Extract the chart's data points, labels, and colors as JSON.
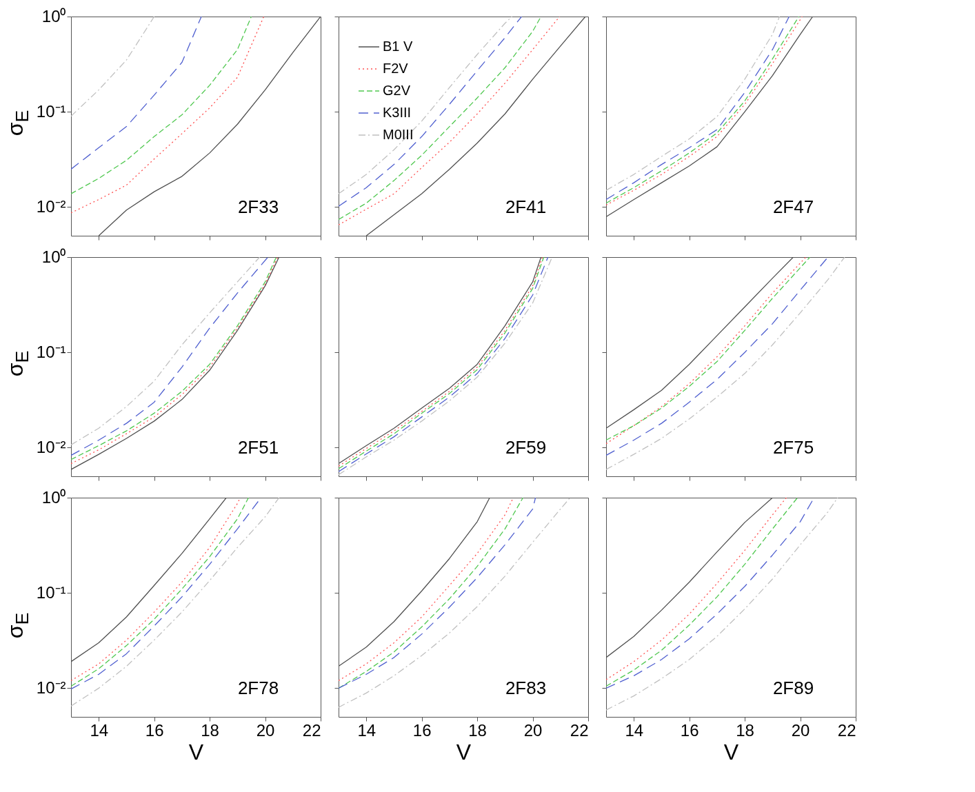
{
  "chart_data": [
    {
      "type": "line",
      "ylabel": "σ$_{E}$",
      "tick_labels": "y",
      "log": "y",
      "xlim": [
        13,
        22
      ],
      "ylim": [
        0.005,
        1
      ],
      "xticks": [
        {
          "value": 14,
          "label": null
        },
        {
          "value": 16,
          "label": null
        },
        {
          "value": 18,
          "label": null
        },
        {
          "value": 20,
          "label": null
        },
        {
          "value": 22,
          "label": null
        }
      ],
      "yticks": [
        {
          "value": 1,
          "label": "10⁰"
        },
        {
          "value": 0.1,
          "label": "10⁻¹"
        },
        {
          "value": 0.01,
          "label": "10⁻²"
        }
      ],
      "annotations": [
        "2F33"
      ],
      "series": [
        {
          "color": "#505050",
          "line_style": "solid",
          "x": [
            14,
            15,
            16,
            17,
            18,
            19,
            20,
            21,
            22
          ],
          "values": [
            0.005,
            0.0093,
            0.0145,
            0.021,
            0.037,
            0.074,
            0.17,
            0.42,
            1
          ]
        },
        {
          "color": "#ff5050",
          "line_style": "dotted",
          "x": [
            13,
            14,
            15,
            16,
            17,
            18,
            19,
            19.95
          ],
          "values": [
            0.0087,
            0.012,
            0.017,
            0.032,
            0.059,
            0.11,
            0.23,
            1
          ]
        },
        {
          "color": "#50c850",
          "line_style": "dashed",
          "x": [
            13,
            14,
            15,
            16,
            17,
            18,
            19,
            19.5
          ],
          "values": [
            0.0138,
            0.02,
            0.031,
            0.055,
            0.093,
            0.19,
            0.45,
            1
          ]
        },
        {
          "color": "#5060d0",
          "line_style": "dashed",
          "x": [
            13,
            14,
            15,
            16,
            17,
            17.7
          ],
          "values": [
            0.025,
            0.042,
            0.07,
            0.15,
            0.33,
            1
          ]
        },
        {
          "color": "#c0c0c0",
          "line_style": "dashed",
          "x": [
            13,
            14,
            15,
            16
          ],
          "values": [
            0.09,
            0.17,
            0.35,
            1
          ]
        }
      ]
    },
    {
      "type": "line",
      "tick_labels": false,
      "log": "y",
      "legend": "top left",
      "xlim": [
        13,
        22
      ],
      "ylim": [
        0.005,
        1
      ],
      "xticks": [
        {
          "value": 14,
          "label": null
        },
        {
          "value": 16,
          "label": null
        },
        {
          "value": 18,
          "label": null
        },
        {
          "value": 20,
          "label": null
        },
        {
          "value": 22,
          "label": null
        }
      ],
      "yticks": [
        {
          "value": 1,
          "label": null
        },
        {
          "value": 0.1,
          "label": null
        },
        {
          "value": 0.01,
          "label": null
        }
      ],
      "annotations": [
        "2F41"
      ],
      "series": [
        {
          "name": "B1 V",
          "color": "#505050",
          "line_style": "solid",
          "x": [
            14,
            15,
            16,
            17,
            18,
            19,
            20,
            21,
            21.9
          ],
          "values": [
            0.005,
            0.0083,
            0.0138,
            0.025,
            0.047,
            0.095,
            0.22,
            0.49,
            1
          ]
        },
        {
          "name": "F2V",
          "color": "#ff5050",
          "line_style": "dotted",
          "x": [
            13,
            14,
            15,
            16,
            17,
            18,
            19,
            20,
            20.97
          ],
          "values": [
            0.0065,
            0.0095,
            0.0138,
            0.026,
            0.048,
            0.095,
            0.2,
            0.45,
            1
          ]
        },
        {
          "name": "G2V",
          "color": "#50c850",
          "line_style": "dashed",
          "x": [
            13,
            14,
            15,
            16,
            17,
            18,
            19,
            20,
            20.3
          ],
          "values": [
            0.0074,
            0.011,
            0.019,
            0.035,
            0.07,
            0.14,
            0.29,
            0.7,
            1
          ]
        },
        {
          "name": "K3III",
          "color": "#5060d0",
          "line_style": "dashed",
          "x": [
            13,
            14,
            15,
            16,
            17,
            18,
            19,
            19.6
          ],
          "values": [
            0.0102,
            0.016,
            0.028,
            0.055,
            0.12,
            0.27,
            0.6,
            1
          ]
        },
        {
          "name": "M0III",
          "color": "#c0c0c0",
          "line_style": "dashed",
          "x": [
            13,
            14,
            15,
            16,
            17,
            18,
            19,
            19.25
          ],
          "values": [
            0.0138,
            0.022,
            0.04,
            0.08,
            0.18,
            0.4,
            0.85,
            1
          ]
        }
      ]
    },
    {
      "type": "line",
      "tick_labels": false,
      "log": "y",
      "xlim": [
        13,
        22
      ],
      "ylim": [
        0.005,
        1
      ],
      "xticks": [
        {
          "value": 14,
          "label": null
        },
        {
          "value": 16,
          "label": null
        },
        {
          "value": 18,
          "label": null
        },
        {
          "value": 20,
          "label": null
        },
        {
          "value": 22,
          "label": null
        }
      ],
      "yticks": [
        {
          "value": 1,
          "label": null
        },
        {
          "value": 0.1,
          "label": null
        },
        {
          "value": 0.01,
          "label": null
        }
      ],
      "annotations": [
        "2F47"
      ],
      "series": [
        {
          "color": "#505050",
          "line_style": "solid",
          "x": [
            13,
            14,
            15,
            16,
            17,
            18,
            19,
            20,
            20.45
          ],
          "values": [
            0.0079,
            0.012,
            0.018,
            0.027,
            0.043,
            0.1,
            0.24,
            0.65,
            1
          ]
        },
        {
          "color": "#ff5050",
          "line_style": "dotted",
          "x": [
            13,
            14,
            15,
            16,
            17,
            18,
            19,
            20.07
          ],
          "values": [
            0.0105,
            0.015,
            0.022,
            0.034,
            0.055,
            0.12,
            0.32,
            1
          ]
        },
        {
          "color": "#50c850",
          "line_style": "dashed",
          "x": [
            13,
            14,
            15,
            16,
            17,
            18,
            19,
            19.95
          ],
          "values": [
            0.011,
            0.016,
            0.024,
            0.037,
            0.06,
            0.13,
            0.36,
            1
          ]
        },
        {
          "color": "#5060d0",
          "line_style": "dashed",
          "x": [
            13,
            14,
            15,
            16,
            17,
            18,
            19,
            19.6
          ],
          "values": [
            0.012,
            0.018,
            0.028,
            0.042,
            0.065,
            0.16,
            0.45,
            1
          ]
        },
        {
          "color": "#c0c0c0",
          "line_style": "dashed",
          "x": [
            13,
            14,
            15,
            16,
            17,
            18,
            19,
            19.25
          ],
          "values": [
            0.015,
            0.022,
            0.034,
            0.052,
            0.089,
            0.22,
            0.65,
            1
          ]
        }
      ]
    },
    {
      "type": "line",
      "ylabel": "σ$_{E}$",
      "tick_labels": "y",
      "log": "y",
      "xlim": [
        13,
        22
      ],
      "ylim": [
        0.005,
        1
      ],
      "xticks": [
        {
          "value": 14,
          "label": null
        },
        {
          "value": 16,
          "label": null
        },
        {
          "value": 18,
          "label": null
        },
        {
          "value": 20,
          "label": null
        },
        {
          "value": 22,
          "label": null
        }
      ],
      "yticks": [
        {
          "value": 1,
          "label": "10⁰"
        },
        {
          "value": 0.1,
          "label": "10⁻¹"
        },
        {
          "value": 0.01,
          "label": "10⁻²"
        }
      ],
      "annotations": [
        "2F51"
      ],
      "series": [
        {
          "color": "#505050",
          "line_style": "solid",
          "x": [
            13,
            14,
            15,
            16,
            17,
            18,
            19,
            20,
            20.5
          ],
          "values": [
            0.0059,
            0.0085,
            0.0125,
            0.019,
            0.032,
            0.065,
            0.17,
            0.5,
            1
          ]
        },
        {
          "color": "#ff5050",
          "line_style": "dotted",
          "x": [
            13,
            14,
            15,
            16,
            17,
            18,
            19,
            20,
            20.45
          ],
          "values": [
            0.0068,
            0.0095,
            0.014,
            0.021,
            0.036,
            0.07,
            0.18,
            0.52,
            1
          ]
        },
        {
          "color": "#50c850",
          "line_style": "dashed",
          "x": [
            13,
            14,
            15,
            16,
            17,
            18,
            19,
            20,
            20.4
          ],
          "values": [
            0.0075,
            0.0105,
            0.015,
            0.023,
            0.039,
            0.075,
            0.19,
            0.55,
            1
          ]
        },
        {
          "color": "#5060d0",
          "line_style": "dashed",
          "x": [
            13,
            14,
            15,
            16,
            17,
            18,
            19,
            20.1
          ],
          "values": [
            0.0083,
            0.012,
            0.018,
            0.03,
            0.07,
            0.18,
            0.42,
            1
          ]
        },
        {
          "color": "#c0c0c0",
          "line_style": "dashed",
          "x": [
            13,
            14,
            15,
            16,
            17,
            18,
            19,
            19.8
          ],
          "values": [
            0.0107,
            0.016,
            0.027,
            0.05,
            0.12,
            0.26,
            0.55,
            1
          ]
        }
      ]
    },
    {
      "type": "line",
      "tick_labels": false,
      "log": "y",
      "xlim": [
        13,
        22
      ],
      "ylim": [
        0.005,
        1
      ],
      "xticks": [
        {
          "value": 14,
          "label": null
        },
        {
          "value": 16,
          "label": null
        },
        {
          "value": 18,
          "label": null
        },
        {
          "value": 20,
          "label": null
        },
        {
          "value": 22,
          "label": null
        }
      ],
      "yticks": [
        {
          "value": 1,
          "label": null
        },
        {
          "value": 0.1,
          "label": null
        },
        {
          "value": 0.01,
          "label": null
        }
      ],
      "annotations": [
        "2F59"
      ],
      "series": [
        {
          "color": "#505050",
          "line_style": "solid",
          "x": [
            13,
            14,
            15,
            16,
            17,
            18,
            19,
            20,
            20.3
          ],
          "values": [
            0.0068,
            0.0105,
            0.016,
            0.026,
            0.042,
            0.075,
            0.19,
            0.55,
            1
          ]
        },
        {
          "color": "#ff5050",
          "line_style": "dotted",
          "x": [
            13,
            14,
            15,
            16,
            17,
            18,
            19,
            20,
            20.35
          ],
          "values": [
            0.0064,
            0.0098,
            0.015,
            0.024,
            0.039,
            0.07,
            0.17,
            0.5,
            1
          ]
        },
        {
          "color": "#50c850",
          "line_style": "dashed",
          "x": [
            13,
            14,
            15,
            16,
            17,
            18,
            19,
            20,
            20.4
          ],
          "values": [
            0.006,
            0.0092,
            0.014,
            0.023,
            0.037,
            0.066,
            0.16,
            0.47,
            1
          ]
        },
        {
          "color": "#5060d0",
          "line_style": "dashed",
          "x": [
            13,
            14,
            15,
            16,
            17,
            18,
            19,
            20,
            20.55
          ],
          "values": [
            0.0056,
            0.0086,
            0.013,
            0.021,
            0.034,
            0.06,
            0.14,
            0.4,
            1
          ]
        },
        {
          "color": "#c0c0c0",
          "line_style": "dashed",
          "x": [
            13,
            14,
            15,
            16,
            17,
            18,
            19,
            20,
            20.7
          ],
          "values": [
            0.0052,
            0.008,
            0.012,
            0.019,
            0.031,
            0.055,
            0.125,
            0.33,
            1
          ]
        }
      ]
    },
    {
      "type": "line",
      "tick_labels": false,
      "log": "y",
      "xlim": [
        13,
        22
      ],
      "ylim": [
        0.005,
        1
      ],
      "xticks": [
        {
          "value": 14,
          "label": null
        },
        {
          "value": 16,
          "label": null
        },
        {
          "value": 18,
          "label": null
        },
        {
          "value": 20,
          "label": null
        },
        {
          "value": 22,
          "label": null
        }
      ],
      "yticks": [
        {
          "value": 1,
          "label": null
        },
        {
          "value": 0.1,
          "label": null
        },
        {
          "value": 0.01,
          "label": null
        }
      ],
      "annotations": [
        "2F75"
      ],
      "series": [
        {
          "color": "#505050",
          "line_style": "solid",
          "x": [
            13,
            14,
            15,
            16,
            17,
            18,
            19,
            19.75
          ],
          "values": [
            0.016,
            0.025,
            0.04,
            0.075,
            0.15,
            0.3,
            0.6,
            1
          ]
        },
        {
          "color": "#ff5050",
          "line_style": "dotted",
          "x": [
            13,
            14,
            15,
            16,
            17,
            18,
            19,
            20.2
          ],
          "values": [
            0.011,
            0.017,
            0.027,
            0.047,
            0.09,
            0.19,
            0.42,
            1
          ]
        },
        {
          "color": "#50c850",
          "line_style": "dashed",
          "x": [
            13,
            14,
            15,
            16,
            17,
            18,
            19,
            20.35
          ],
          "values": [
            0.012,
            0.017,
            0.026,
            0.044,
            0.08,
            0.17,
            0.37,
            1
          ]
        },
        {
          "color": "#5060d0",
          "line_style": "dashed",
          "x": [
            13,
            14,
            15,
            16,
            17,
            18,
            19,
            20,
            21
          ],
          "values": [
            0.0083,
            0.012,
            0.018,
            0.03,
            0.052,
            0.1,
            0.2,
            0.45,
            1
          ]
        },
        {
          "color": "#c0c0c0",
          "line_style": "dashed",
          "x": [
            13,
            14,
            15,
            16,
            17,
            18,
            19,
            20,
            21,
            21.6
          ],
          "values": [
            0.0059,
            0.0085,
            0.0125,
            0.02,
            0.034,
            0.06,
            0.12,
            0.26,
            0.58,
            1
          ]
        }
      ]
    },
    {
      "type": "line",
      "xlabel": "V",
      "ylabel": "σ$_{E}$",
      "log": "y",
      "xlim": [
        13,
        22
      ],
      "ylim": [
        0.005,
        1
      ],
      "xticks": [
        14,
        16,
        18,
        20,
        22
      ],
      "yticks": [
        {
          "value": 1,
          "label": "10⁰"
        },
        {
          "value": 0.1,
          "label": "10⁻¹"
        },
        {
          "value": 0.01,
          "label": "10⁻²"
        }
      ],
      "annotations": [
        "2F78"
      ],
      "series": [
        {
          "color": "#505050",
          "line_style": "solid",
          "x": [
            13,
            14,
            15,
            16,
            17,
            18,
            18.6
          ],
          "values": [
            0.019,
            0.03,
            0.056,
            0.12,
            0.26,
            0.6,
            1
          ]
        },
        {
          "color": "#ff5050",
          "line_style": "dotted",
          "x": [
            13,
            14,
            15,
            16,
            17,
            18,
            19,
            19.1
          ],
          "values": [
            0.012,
            0.018,
            0.032,
            0.063,
            0.13,
            0.3,
            0.87,
            1
          ]
        },
        {
          "color": "#50c850",
          "line_style": "dashed",
          "x": [
            13,
            14,
            15,
            16,
            17,
            18,
            19,
            19.4
          ],
          "values": [
            0.0105,
            0.016,
            0.028,
            0.053,
            0.11,
            0.24,
            0.6,
            1
          ]
        },
        {
          "color": "#5060d0",
          "line_style": "dashed",
          "x": [
            13,
            14,
            15,
            16,
            17,
            18,
            19,
            19.85
          ],
          "values": [
            0.0098,
            0.014,
            0.023,
            0.045,
            0.091,
            0.2,
            0.47,
            1
          ]
        },
        {
          "color": "#c0c0c0",
          "line_style": "dashed",
          "x": [
            13,
            14,
            15,
            16,
            17,
            18,
            19,
            20,
            20.5
          ],
          "values": [
            0.0065,
            0.01,
            0.017,
            0.032,
            0.063,
            0.135,
            0.3,
            0.63,
            1
          ]
        }
      ]
    },
    {
      "type": "line",
      "xlabel": "V",
      "tick_labels": "x",
      "log": "y",
      "xlim": [
        13,
        22
      ],
      "ylim": [
        0.005,
        1
      ],
      "xticks": [
        14,
        16,
        18,
        20,
        22
      ],
      "yticks": [
        {
          "value": 1,
          "label": null
        },
        {
          "value": 0.1,
          "label": null
        },
        {
          "value": 0.01,
          "label": null
        }
      ],
      "annotations": [
        "2F83"
      ],
      "series": [
        {
          "color": "#505050",
          "line_style": "solid",
          "x": [
            13,
            14,
            15,
            16,
            17,
            18,
            18.45
          ],
          "values": [
            0.017,
            0.027,
            0.05,
            0.105,
            0.23,
            0.56,
            1
          ]
        },
        {
          "color": "#ff5050",
          "line_style": "dotted",
          "x": [
            13,
            14,
            15,
            16,
            17,
            18,
            19,
            19.3
          ],
          "values": [
            0.012,
            0.018,
            0.03,
            0.056,
            0.12,
            0.26,
            0.66,
            1
          ]
        },
        {
          "color": "#50c850",
          "line_style": "dashed",
          "x": [
            13,
            14,
            15,
            16,
            17,
            18,
            19,
            19.65
          ],
          "values": [
            0.01,
            0.015,
            0.024,
            0.044,
            0.087,
            0.19,
            0.47,
            1
          ]
        },
        {
          "color": "#5060d0",
          "line_style": "dashed",
          "x": [
            13,
            14,
            15,
            16,
            17,
            18,
            19,
            20,
            20.1
          ],
          "values": [
            0.01,
            0.014,
            0.021,
            0.037,
            0.071,
            0.145,
            0.32,
            0.76,
            1
          ]
        },
        {
          "color": "#c0c0c0",
          "line_style": "dashed",
          "x": [
            13,
            14,
            15,
            16,
            17,
            18,
            19,
            20,
            21,
            21.35
          ],
          "values": [
            0.0063,
            0.0089,
            0.0135,
            0.022,
            0.038,
            0.072,
            0.15,
            0.34,
            0.76,
            1
          ]
        }
      ]
    },
    {
      "type": "line",
      "xlabel": "V",
      "tick_labels": "x",
      "log": "y",
      "xlim": [
        13,
        22
      ],
      "ylim": [
        0.005,
        1
      ],
      "xticks": [
        14,
        16,
        18,
        20,
        22
      ],
      "yticks": [
        {
          "value": 1,
          "label": null
        },
        {
          "value": 0.1,
          "label": null
        },
        {
          "value": 0.01,
          "label": null
        }
      ],
      "annotations": [
        "2F89"
      ],
      "series": [
        {
          "color": "#505050",
          "line_style": "solid",
          "x": [
            13,
            14,
            15,
            16,
            17,
            18,
            19
          ],
          "values": [
            0.021,
            0.035,
            0.066,
            0.13,
            0.27,
            0.55,
            1
          ]
        },
        {
          "color": "#ff5050",
          "line_style": "dotted",
          "x": [
            13,
            14,
            15,
            16,
            17,
            18,
            19,
            19.5
          ],
          "values": [
            0.0123,
            0.019,
            0.032,
            0.06,
            0.126,
            0.28,
            0.66,
            1
          ]
        },
        {
          "color": "#50c850",
          "line_style": "dashed",
          "x": [
            13,
            14,
            15,
            16,
            17,
            18,
            19,
            19.9
          ],
          "values": [
            0.0105,
            0.0155,
            0.025,
            0.046,
            0.091,
            0.2,
            0.47,
            1
          ]
        },
        {
          "color": "#5060d0",
          "line_style": "dashed",
          "x": [
            13,
            14,
            15,
            16,
            17,
            18,
            19,
            20,
            20.5
          ],
          "values": [
            0.01,
            0.0135,
            0.02,
            0.033,
            0.06,
            0.117,
            0.25,
            0.56,
            1
          ]
        },
        {
          "color": "#c0c0c0",
          "line_style": "dashed",
          "x": [
            13,
            14,
            15,
            16,
            17,
            18,
            19,
            20,
            21,
            21.35
          ],
          "values": [
            0.0059,
            0.0083,
            0.0126,
            0.02,
            0.035,
            0.068,
            0.14,
            0.32,
            0.71,
            1
          ]
        }
      ]
    }
  ]
}
